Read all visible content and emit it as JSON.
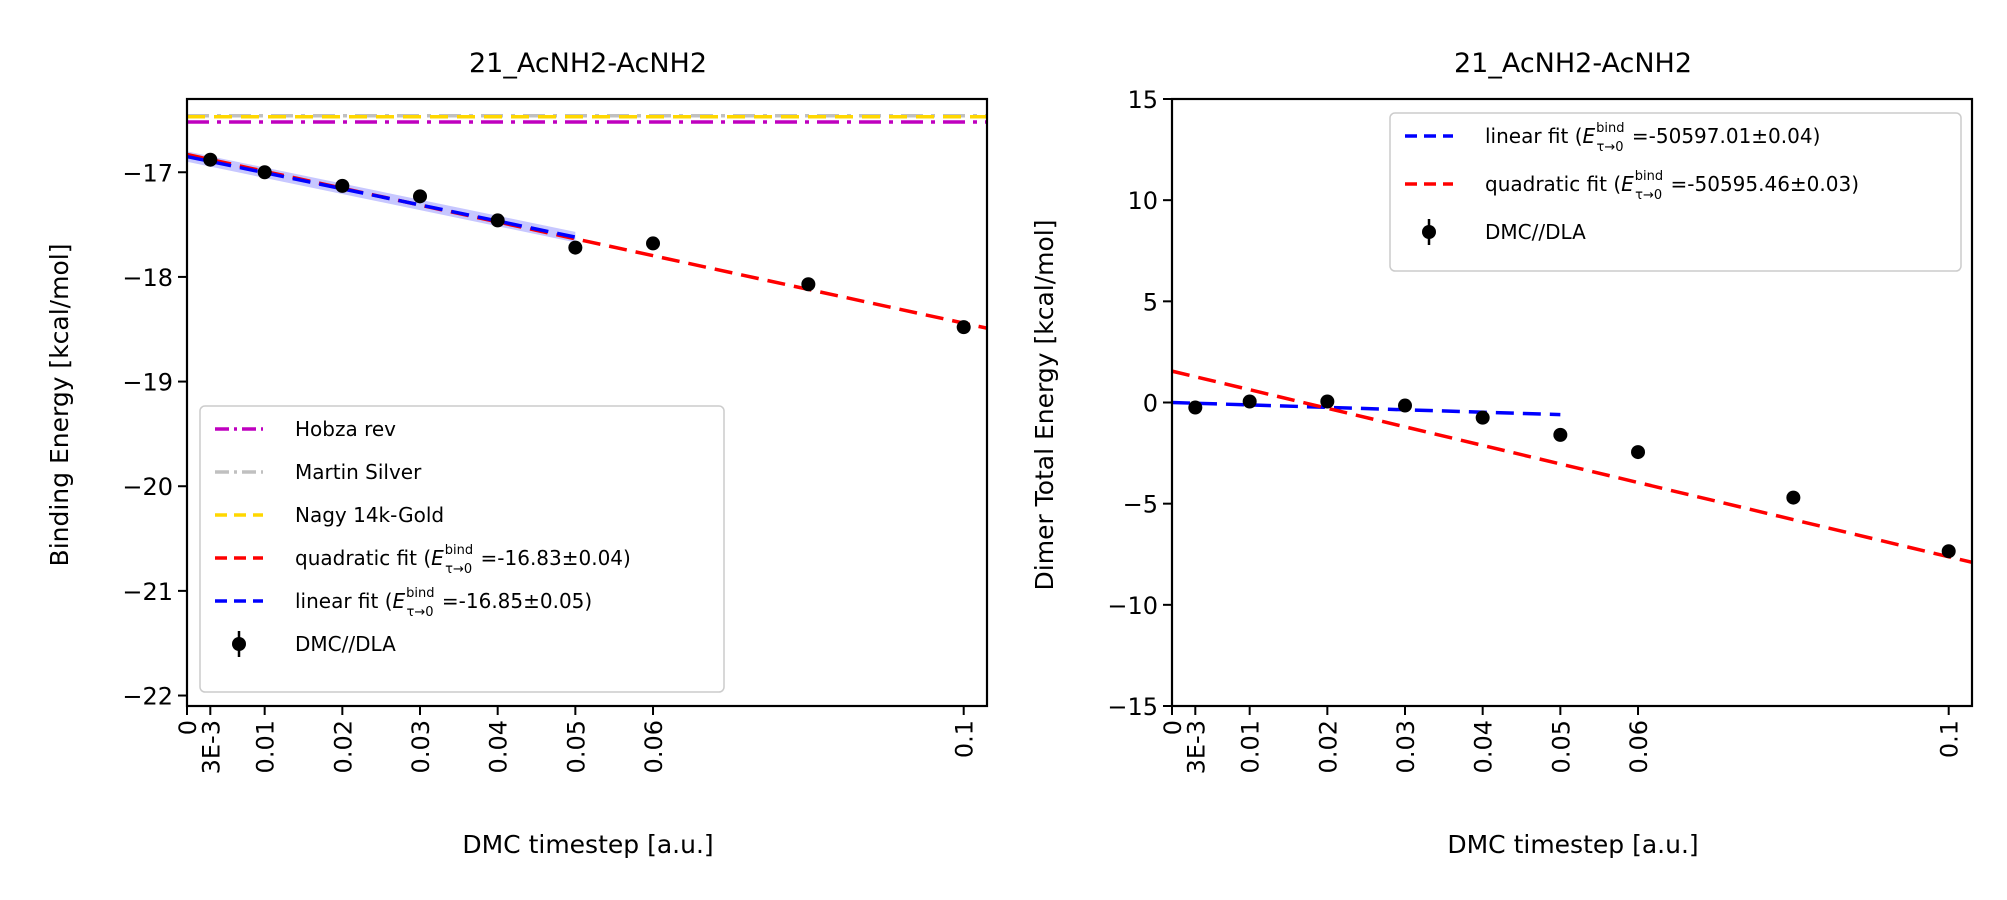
{
  "chart_data": [
    {
      "type": "line",
      "title": "21_AcNH2-AcNH2",
      "xlabel": "DMC timestep [a.u.]",
      "ylabel": "Binding Energy [kcal/mol]",
      "xlim": [
        0,
        0.103
      ],
      "ylim": [
        -22.1,
        -16.3
      ],
      "xticks": [
        0,
        0.003,
        0.01,
        0.02,
        0.03,
        0.04,
        0.05,
        0.06,
        0.1
      ],
      "xtick_labels": [
        "0",
        "3E-3",
        "0.01",
        "0.02",
        "0.03",
        "0.04",
        "0.05",
        "0.06",
        "0.1"
      ],
      "yticks": [
        -22,
        -21,
        -20,
        -19,
        -18,
        -17
      ],
      "ytick_labels": [
        "−22",
        "−21",
        "−20",
        "−19",
        "−18",
        "−17"
      ],
      "reference_lines": [
        {
          "name": "Hobza rev",
          "y": -16.52,
          "color": "#bf00bf",
          "style": "dashdot"
        },
        {
          "name": "Martin Silver",
          "y": -16.46,
          "color": "#c0c0c0",
          "style": "dashdot"
        },
        {
          "name": "Nagy 14k-Gold",
          "y": -16.47,
          "color": "#ffd700",
          "style": "dashed"
        }
      ],
      "fits": [
        {
          "name": "quadratic fit",
          "label_prefix": "quadratic fit (",
          "label_value": " =-16.83±0.04)",
          "color": "#ff0000",
          "x": [
            0,
            0.103
          ],
          "y": [
            -16.83,
            -18.49
          ]
        },
        {
          "name": "linear fit",
          "label_prefix": "linear fit (",
          "label_value": " =-16.85±0.05)",
          "color": "#0000ff",
          "x": [
            0,
            0.05
          ],
          "y": [
            -16.85,
            -17.62
          ],
          "band": 0.05
        }
      ],
      "series": [
        {
          "name": "DMC//DLA",
          "x": [
            0.003,
            0.01,
            0.02,
            0.03,
            0.04,
            0.05,
            0.06,
            0.08,
            0.1
          ],
          "y": [
            -16.88,
            -17.0,
            -17.13,
            -17.23,
            -17.46,
            -17.72,
            -17.68,
            -18.07,
            -18.48
          ],
          "err": [
            0.03,
            0.03,
            0.03,
            0.03,
            0.03,
            0.03,
            0.03,
            0.03,
            0.03
          ]
        }
      ],
      "legend": {
        "position": "lower-left",
        "order": [
          "Hobza rev",
          "Martin Silver",
          "Nagy 14k-Gold",
          "quadratic fit",
          "linear fit",
          "DMC//DLA"
        ],
        "subscript_label": "E",
        "superscript_label": "bind",
        "subscript_detail": "τ→0"
      }
    },
    {
      "type": "line",
      "title": "21_AcNH2-AcNH2",
      "xlabel": "DMC timestep [a.u.]",
      "ylabel": "Dimer Total Energy [kcal/mol]",
      "xlim": [
        0,
        0.103
      ],
      "ylim": [
        -15,
        15
      ],
      "xticks": [
        0,
        0.003,
        0.01,
        0.02,
        0.03,
        0.04,
        0.05,
        0.06,
        0.1
      ],
      "xtick_labels": [
        "0",
        "3E-3",
        "0.01",
        "0.02",
        "0.03",
        "0.04",
        "0.05",
        "0.06",
        "0.1"
      ],
      "yticks": [
        -15,
        -10,
        -5,
        0,
        5,
        10,
        15
      ],
      "ytick_labels": [
        "−15",
        "−10",
        "−5",
        "0",
        "5",
        "10",
        "15"
      ],
      "reference_lines": [],
      "fits": [
        {
          "name": "linear fit",
          "label_prefix": "linear fit (",
          "label_value": " =-50597.01±0.04)",
          "color": "#0000ff",
          "x": [
            0,
            0.05
          ],
          "y": [
            0.0,
            -0.6
          ]
        },
        {
          "name": "quadratic fit",
          "label_prefix": "quadratic fit (",
          "label_value": " =-50595.46±0.03)",
          "color": "#ff0000",
          "x": [
            0,
            0.103
          ],
          "y": [
            1.55,
            -7.9
          ]
        }
      ],
      "series": [
        {
          "name": "DMC//DLA",
          "x": [
            0.003,
            0.01,
            0.02,
            0.03,
            0.04,
            0.05,
            0.06,
            0.08,
            0.1
          ],
          "y": [
            -0.25,
            0.05,
            0.05,
            -0.15,
            -0.75,
            -1.6,
            -2.45,
            -4.7,
            -7.35
          ],
          "err": [
            0.05,
            0.05,
            0.05,
            0.05,
            0.05,
            0.05,
            0.05,
            0.05,
            0.05
          ]
        }
      ],
      "legend": {
        "position": "upper-right",
        "order": [
          "linear fit",
          "quadratic fit",
          "DMC//DLA"
        ],
        "subscript_label": "E",
        "superscript_label": "bind",
        "subscript_detail": "τ→0"
      }
    }
  ]
}
